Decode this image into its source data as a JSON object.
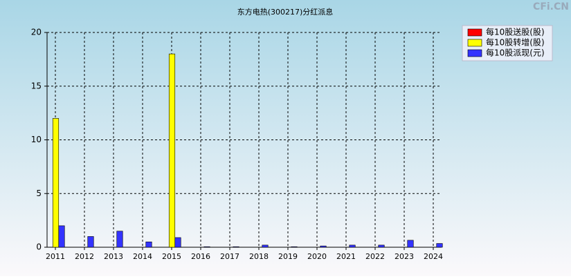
{
  "chart_data": {
    "type": "bar",
    "title": "东方电热(300217)分红派息",
    "watermark": "CFi.CN",
    "categories": [
      "2011",
      "2012",
      "2013",
      "2014",
      "2015",
      "2016",
      "2017",
      "2018",
      "2019",
      "2020",
      "2021",
      "2022",
      "2023",
      "2024"
    ],
    "series": [
      {
        "name": "每10股送股(股)",
        "color": "#ff0000",
        "values": [
          0,
          0,
          0,
          0,
          0,
          0,
          0,
          0,
          0,
          0,
          0,
          0,
          0,
          0
        ]
      },
      {
        "name": "每10股转增(股)",
        "color": "#ffff00",
        "values": [
          12,
          0,
          0,
          0,
          18,
          0,
          0,
          0,
          0,
          0,
          0,
          0,
          0,
          0
        ]
      },
      {
        "name": "每10股派现(元)",
        "color": "#3333ff",
        "values": [
          2,
          1,
          1.5,
          0.5,
          0.9,
          0.05,
          0.05,
          0.2,
          0.05,
          0.12,
          0.2,
          0.2,
          0.65,
          0.35
        ]
      }
    ],
    "ylim": [
      0,
      20
    ],
    "yticks": [
      0,
      5,
      10,
      15,
      20
    ],
    "grid": true,
    "legend": "top-right"
  }
}
